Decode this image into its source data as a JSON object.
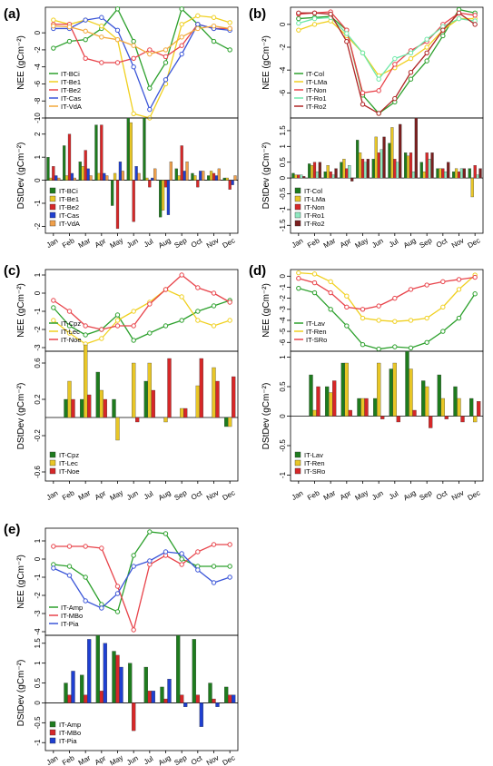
{
  "months": [
    "Jan",
    "Feb",
    "Mar",
    "Apr",
    "May",
    "Jun",
    "Jul",
    "Aug",
    "Sep",
    "Oct",
    "Nov",
    "Dec"
  ],
  "nee_ylabel": "NEE (gCm⁻²)",
  "dst_ylabel": "DStDev (gCm⁻²)",
  "chart_data": [
    {
      "panel": "(a)",
      "type": "line",
      "ylabel": "NEE (gCm⁻²)",
      "ylim": [
        -10,
        3
      ],
      "yticks": [
        0,
        -2,
        -4,
        -6,
        -8,
        -10
      ],
      "legend": "bottom-left",
      "series": [
        {
          "name": "IT-BCi",
          "color": "#2ca02c",
          "values": [
            -1.8,
            -1.0,
            -0.8,
            0.5,
            2.8,
            -1.0,
            -6.5,
            -3.5,
            2.8,
            1.0,
            -1.0,
            -2.0
          ]
        },
        {
          "name": "IT-Be1",
          "color": "#f0d020",
          "values": [
            1.5,
            1.0,
            1.5,
            0.8,
            -0.8,
            -9.5,
            -10.0,
            -6.0,
            1.0,
            2.0,
            1.8,
            1.2
          ]
        },
        {
          "name": "IT-Be2",
          "color": "#e8434a",
          "values": [
            1.0,
            1.0,
            -3.0,
            -3.5,
            -3.5,
            -3.0,
            -2.0,
            -2.8,
            -1.5,
            1.0,
            0.5,
            0.5
          ]
        },
        {
          "name": "IT-Cas",
          "color": "#3a55d8",
          "values": [
            0.5,
            0.5,
            1.5,
            1.8,
            0.3,
            -4.0,
            -9.0,
            -5.5,
            -2.5,
            1.0,
            0.5,
            0.3
          ]
        },
        {
          "name": "IT-VdA",
          "color": "#f2a93b",
          "values": [
            0.8,
            0.7,
            0.2,
            -0.5,
            -0.8,
            -1.5,
            -2.5,
            -2.0,
            -0.5,
            0.5,
            0.8,
            0.5
          ]
        }
      ]
    },
    {
      "panel": "(a)",
      "type": "bar",
      "ylabel": "DStDev (gCm⁻²)",
      "ylim": [
        -2.3,
        2.7
      ],
      "yticks": [
        2,
        1,
        0,
        -1,
        -2
      ],
      "legend": "bottom-left",
      "series": [
        {
          "name": "IT-BCi",
          "color": "#1e7b1e",
          "values": [
            1.0,
            1.5,
            0.8,
            2.4,
            -1.1,
            2.7,
            2.7,
            -1.6,
            0.5,
            0.3,
            0.2,
            0.1
          ]
        },
        {
          "name": "IT-Be1",
          "color": "#e8c626",
          "values": [
            0.1,
            0.2,
            0.6,
            0.3,
            0.3,
            2.5,
            0.1,
            -1.3,
            0.2,
            0.2,
            0.4,
            0.1
          ]
        },
        {
          "name": "IT-Be2",
          "color": "#d62728",
          "values": [
            0.6,
            2.0,
            1.3,
            2.4,
            -2.1,
            -1.8,
            -0.3,
            -0.3,
            1.5,
            -0.3,
            0.3,
            -0.4
          ]
        },
        {
          "name": "IT-Cas",
          "color": "#1f3fd0",
          "values": [
            0.2,
            0.3,
            0.5,
            0.3,
            0.8,
            0.6,
            0.1,
            -1.5,
            0.4,
            0.4,
            0.2,
            -0.2
          ]
        },
        {
          "name": "IT-VdA",
          "color": "#f0a04b",
          "values": [
            0.1,
            0.1,
            0.2,
            0.2,
            0.4,
            0.3,
            0.5,
            0.8,
            0.8,
            0.4,
            0.5,
            0.2
          ]
        }
      ]
    },
    {
      "panel": "(b)",
      "type": "line",
      "ylabel": "NEE (gCm⁻²)",
      "ylim": [
        -8.2,
        1.5
      ],
      "yticks": [
        0,
        -2,
        -4,
        -6
      ],
      "legend": "bottom-left",
      "series": [
        {
          "name": "IT-Col",
          "color": "#2ca02c",
          "values": [
            0.5,
            0.6,
            0.7,
            -0.5,
            -6.2,
            -7.8,
            -6.8,
            -4.8,
            -3.2,
            -1.0,
            1.3,
            1.0
          ]
        },
        {
          "name": "IT-LMa",
          "color": "#f0d020",
          "values": [
            -0.5,
            0.0,
            0.3,
            -1.0,
            -2.5,
            -4.5,
            -3.8,
            -3.0,
            -2.0,
            -0.5,
            0.5,
            0.5
          ]
        },
        {
          "name": "IT-Non",
          "color": "#e8434a",
          "values": [
            0.9,
            1.0,
            1.1,
            -0.5,
            -6.0,
            -5.8,
            -3.5,
            -2.3,
            -1.5,
            0.0,
            1.0,
            0.8
          ]
        },
        {
          "name": "IT-Ro1",
          "color": "#6de8a8",
          "values": [
            0.1,
            0.5,
            0.6,
            -0.8,
            -2.5,
            -4.8,
            -3.0,
            -2.5,
            -1.3,
            -0.2,
            0.5,
            0.3
          ]
        },
        {
          "name": "IT-Ro2",
          "color": "#b02525",
          "values": [
            1.0,
            1.0,
            0.9,
            -1.5,
            -7.0,
            -7.8,
            -6.5,
            -4.2,
            -2.5,
            -0.5,
            1.0,
            0.0
          ]
        }
      ]
    },
    {
      "panel": "(b)",
      "type": "bar",
      "ylabel": "DStDev (gCm⁻²)",
      "ylim": [
        -1.75,
        1.9
      ],
      "yticks": [
        1.5,
        1,
        0.5,
        0,
        -0.5,
        -1,
        -1.5
      ],
      "legend": "bottom-left",
      "series": [
        {
          "name": "IT-Col",
          "color": "#1e7b1e",
          "values": [
            0.15,
            0.45,
            0.2,
            0.5,
            1.2,
            0.6,
            1.1,
            0.8,
            0.5,
            0.3,
            0.2,
            0.3
          ]
        },
        {
          "name": "IT-LMa",
          "color": "#e8c626",
          "values": [
            0.1,
            0.4,
            0.4,
            0.6,
            0.8,
            1.3,
            1.6,
            0.7,
            0.2,
            0.3,
            0.3,
            -0.6
          ]
        },
        {
          "name": "IT-Non",
          "color": "#d62728",
          "values": [
            0.1,
            0.5,
            0.2,
            0.3,
            0.6,
            0.8,
            0.6,
            0.8,
            0.8,
            0.3,
            0.2,
            0.4
          ]
        },
        {
          "name": "IT-Ro1",
          "color": "#8fe8c0",
          "values": [
            0.1,
            0.2,
            0.1,
            0.4,
            0.5,
            0.9,
            0.5,
            0.2,
            0.6,
            0.2,
            0.3,
            0.1
          ]
        },
        {
          "name": "IT-Ro2",
          "color": "#7a1f1f",
          "values": [
            0.05,
            0.5,
            0.3,
            -0.1,
            0.6,
            1.3,
            1.7,
            1.9,
            0.8,
            0.5,
            0.3,
            0.3
          ]
        }
      ]
    },
    {
      "panel": "(c)",
      "type": "line",
      "ylabel": "NEE (gCm⁻²)",
      "ylim": [
        -3.2,
        1.3
      ],
      "yticks": [
        1,
        0,
        -1,
        -2,
        -3
      ],
      "legend": "bottom-left",
      "series": [
        {
          "name": "IT-Cpz",
          "color": "#2ca02c",
          "values": [
            -0.8,
            -1.8,
            -2.3,
            -2.0,
            -1.2,
            -2.6,
            -2.2,
            -1.8,
            -1.5,
            -1.0,
            -0.7,
            -0.4
          ]
        },
        {
          "name": "IT-Lec",
          "color": "#f0d020",
          "values": [
            -1.5,
            -2.2,
            -2.8,
            -2.5,
            -1.5,
            -1.0,
            -0.5,
            0.2,
            -0.2,
            -1.5,
            -1.8,
            -1.5
          ]
        },
        {
          "name": "IT-Noe",
          "color": "#e8434a",
          "values": [
            -0.4,
            -1.0,
            -1.8,
            -2.0,
            -1.8,
            -1.8,
            -0.6,
            0.2,
            1.0,
            0.3,
            0.0,
            -0.5
          ]
        }
      ]
    },
    {
      "panel": "(c)",
      "type": "bar",
      "ylabel": "DStDev (gCm⁻²)",
      "ylim": [
        -0.7,
        0.73
      ],
      "yticks": [
        0.6,
        0.2,
        -0.2,
        -0.6
      ],
      "legend": "bottom-left",
      "series": [
        {
          "name": "IT-Cpz",
          "color": "#1e7b1e",
          "values": [
            0.0,
            0.2,
            0.2,
            0.5,
            0.2,
            0.0,
            0.4,
            0.0,
            0.0,
            0.0,
            0.0,
            -0.1
          ]
        },
        {
          "name": "IT-Lec",
          "color": "#e8c626",
          "values": [
            0.0,
            0.4,
            0.8,
            0.3,
            -0.25,
            0.6,
            0.6,
            -0.05,
            0.1,
            0.35,
            0.55,
            -0.1
          ]
        },
        {
          "name": "IT-Noe",
          "color": "#d62728",
          "values": [
            0.0,
            0.2,
            0.25,
            0.2,
            0.0,
            -0.05,
            0.3,
            0.65,
            0.1,
            0.65,
            0.4,
            0.45
          ]
        }
      ]
    },
    {
      "panel": "(d)",
      "type": "line",
      "ylabel": "NEE (gCm⁻²)",
      "ylim": [
        -6.8,
        0.6
      ],
      "yticks": [
        0,
        -1,
        -2,
        -3,
        -4,
        -5,
        -6
      ],
      "legend": "bottom-left",
      "series": [
        {
          "name": "IT-Lav",
          "color": "#2ca02c",
          "values": [
            -1.1,
            -1.5,
            -3.0,
            -4.5,
            -6.2,
            -6.6,
            -6.4,
            -6.5,
            -6.0,
            -5.0,
            -3.8,
            -1.6
          ]
        },
        {
          "name": "IT-Ren",
          "color": "#f0d020",
          "values": [
            0.3,
            0.2,
            -0.5,
            -1.8,
            -3.8,
            -4.0,
            -4.1,
            -4.0,
            -3.8,
            -2.8,
            -1.2,
            0.1
          ]
        },
        {
          "name": "IT-SRo",
          "color": "#e8434a",
          "values": [
            -0.2,
            -0.6,
            -1.5,
            -2.8,
            -3.0,
            -2.7,
            -2.0,
            -1.2,
            -0.8,
            -0.5,
            -0.3,
            -0.1
          ]
        }
      ]
    },
    {
      "panel": "(d)",
      "type": "bar",
      "ylabel": "DStDev (gCm⁻²)",
      "ylim": [
        -1.1,
        1.1
      ],
      "yticks": [
        1,
        0.5,
        0,
        -0.5,
        -1
      ],
      "legend": "bottom-left",
      "series": [
        {
          "name": "IT-Lav",
          "color": "#1e7b1e",
          "values": [
            0.0,
            0.7,
            0.5,
            0.9,
            0.3,
            0.3,
            0.8,
            1.1,
            0.6,
            0.7,
            0.5,
            0.3
          ]
        },
        {
          "name": "IT-Ren",
          "color": "#e8c626",
          "values": [
            0.0,
            0.1,
            0.4,
            0.9,
            0.3,
            0.9,
            0.9,
            0.8,
            0.5,
            0.3,
            0.3,
            -0.1
          ]
        },
        {
          "name": "IT-SRo",
          "color": "#d62728",
          "values": [
            0.0,
            0.5,
            0.6,
            0.1,
            0.3,
            -0.05,
            -0.1,
            0.1,
            -0.2,
            -0.05,
            -0.1,
            0.25
          ]
        }
      ]
    },
    {
      "panel": "(e)",
      "type": "line",
      "ylabel": "NEE (gCm⁻²)",
      "ylim": [
        -4.2,
        1.7
      ],
      "yticks": [
        1,
        0,
        -1,
        -2,
        -3,
        -4
      ],
      "legend": "bottom-left",
      "series": [
        {
          "name": "IT-Amp",
          "color": "#2ca02c",
          "values": [
            -0.3,
            -0.4,
            -1.0,
            -2.5,
            -2.9,
            0.2,
            1.5,
            1.4,
            0.0,
            -0.4,
            -0.4,
            -0.4
          ]
        },
        {
          "name": "IT-MBo",
          "color": "#e8434a",
          "values": [
            0.7,
            0.7,
            0.7,
            0.6,
            -1.5,
            -3.9,
            -0.3,
            0.2,
            -0.3,
            0.4,
            0.8,
            0.8
          ]
        },
        {
          "name": "IT-Pia",
          "color": "#3a55d8",
          "values": [
            -0.5,
            -0.9,
            -2.3,
            -2.7,
            -1.9,
            -0.4,
            -0.1,
            0.4,
            0.3,
            -0.6,
            -1.3,
            -1.0
          ]
        }
      ]
    },
    {
      "panel": "(e)",
      "type": "bar",
      "ylabel": "DStDev (gCm⁻²)",
      "ylim": [
        -1.2,
        1.7
      ],
      "yticks": [
        1.5,
        1,
        0.5,
        0,
        -0.5,
        -1
      ],
      "legend": "bottom-left",
      "series": [
        {
          "name": "IT-Amp",
          "color": "#1e7b1e",
          "values": [
            0.0,
            0.5,
            0.7,
            1.7,
            1.3,
            1.0,
            0.9,
            0.4,
            1.7,
            1.6,
            0.5,
            0.4
          ]
        },
        {
          "name": "IT-MBo",
          "color": "#d62728",
          "values": [
            0.0,
            0.2,
            0.2,
            0.3,
            1.2,
            -0.7,
            0.3,
            0.1,
            0.2,
            0.2,
            0.1,
            0.2
          ]
        },
        {
          "name": "IT-Pia",
          "color": "#1f3fd0",
          "values": [
            0.0,
            0.8,
            1.6,
            1.5,
            0.9,
            0.0,
            0.3,
            0.6,
            -0.1,
            -0.6,
            -0.1,
            0.2
          ]
        }
      ]
    }
  ]
}
